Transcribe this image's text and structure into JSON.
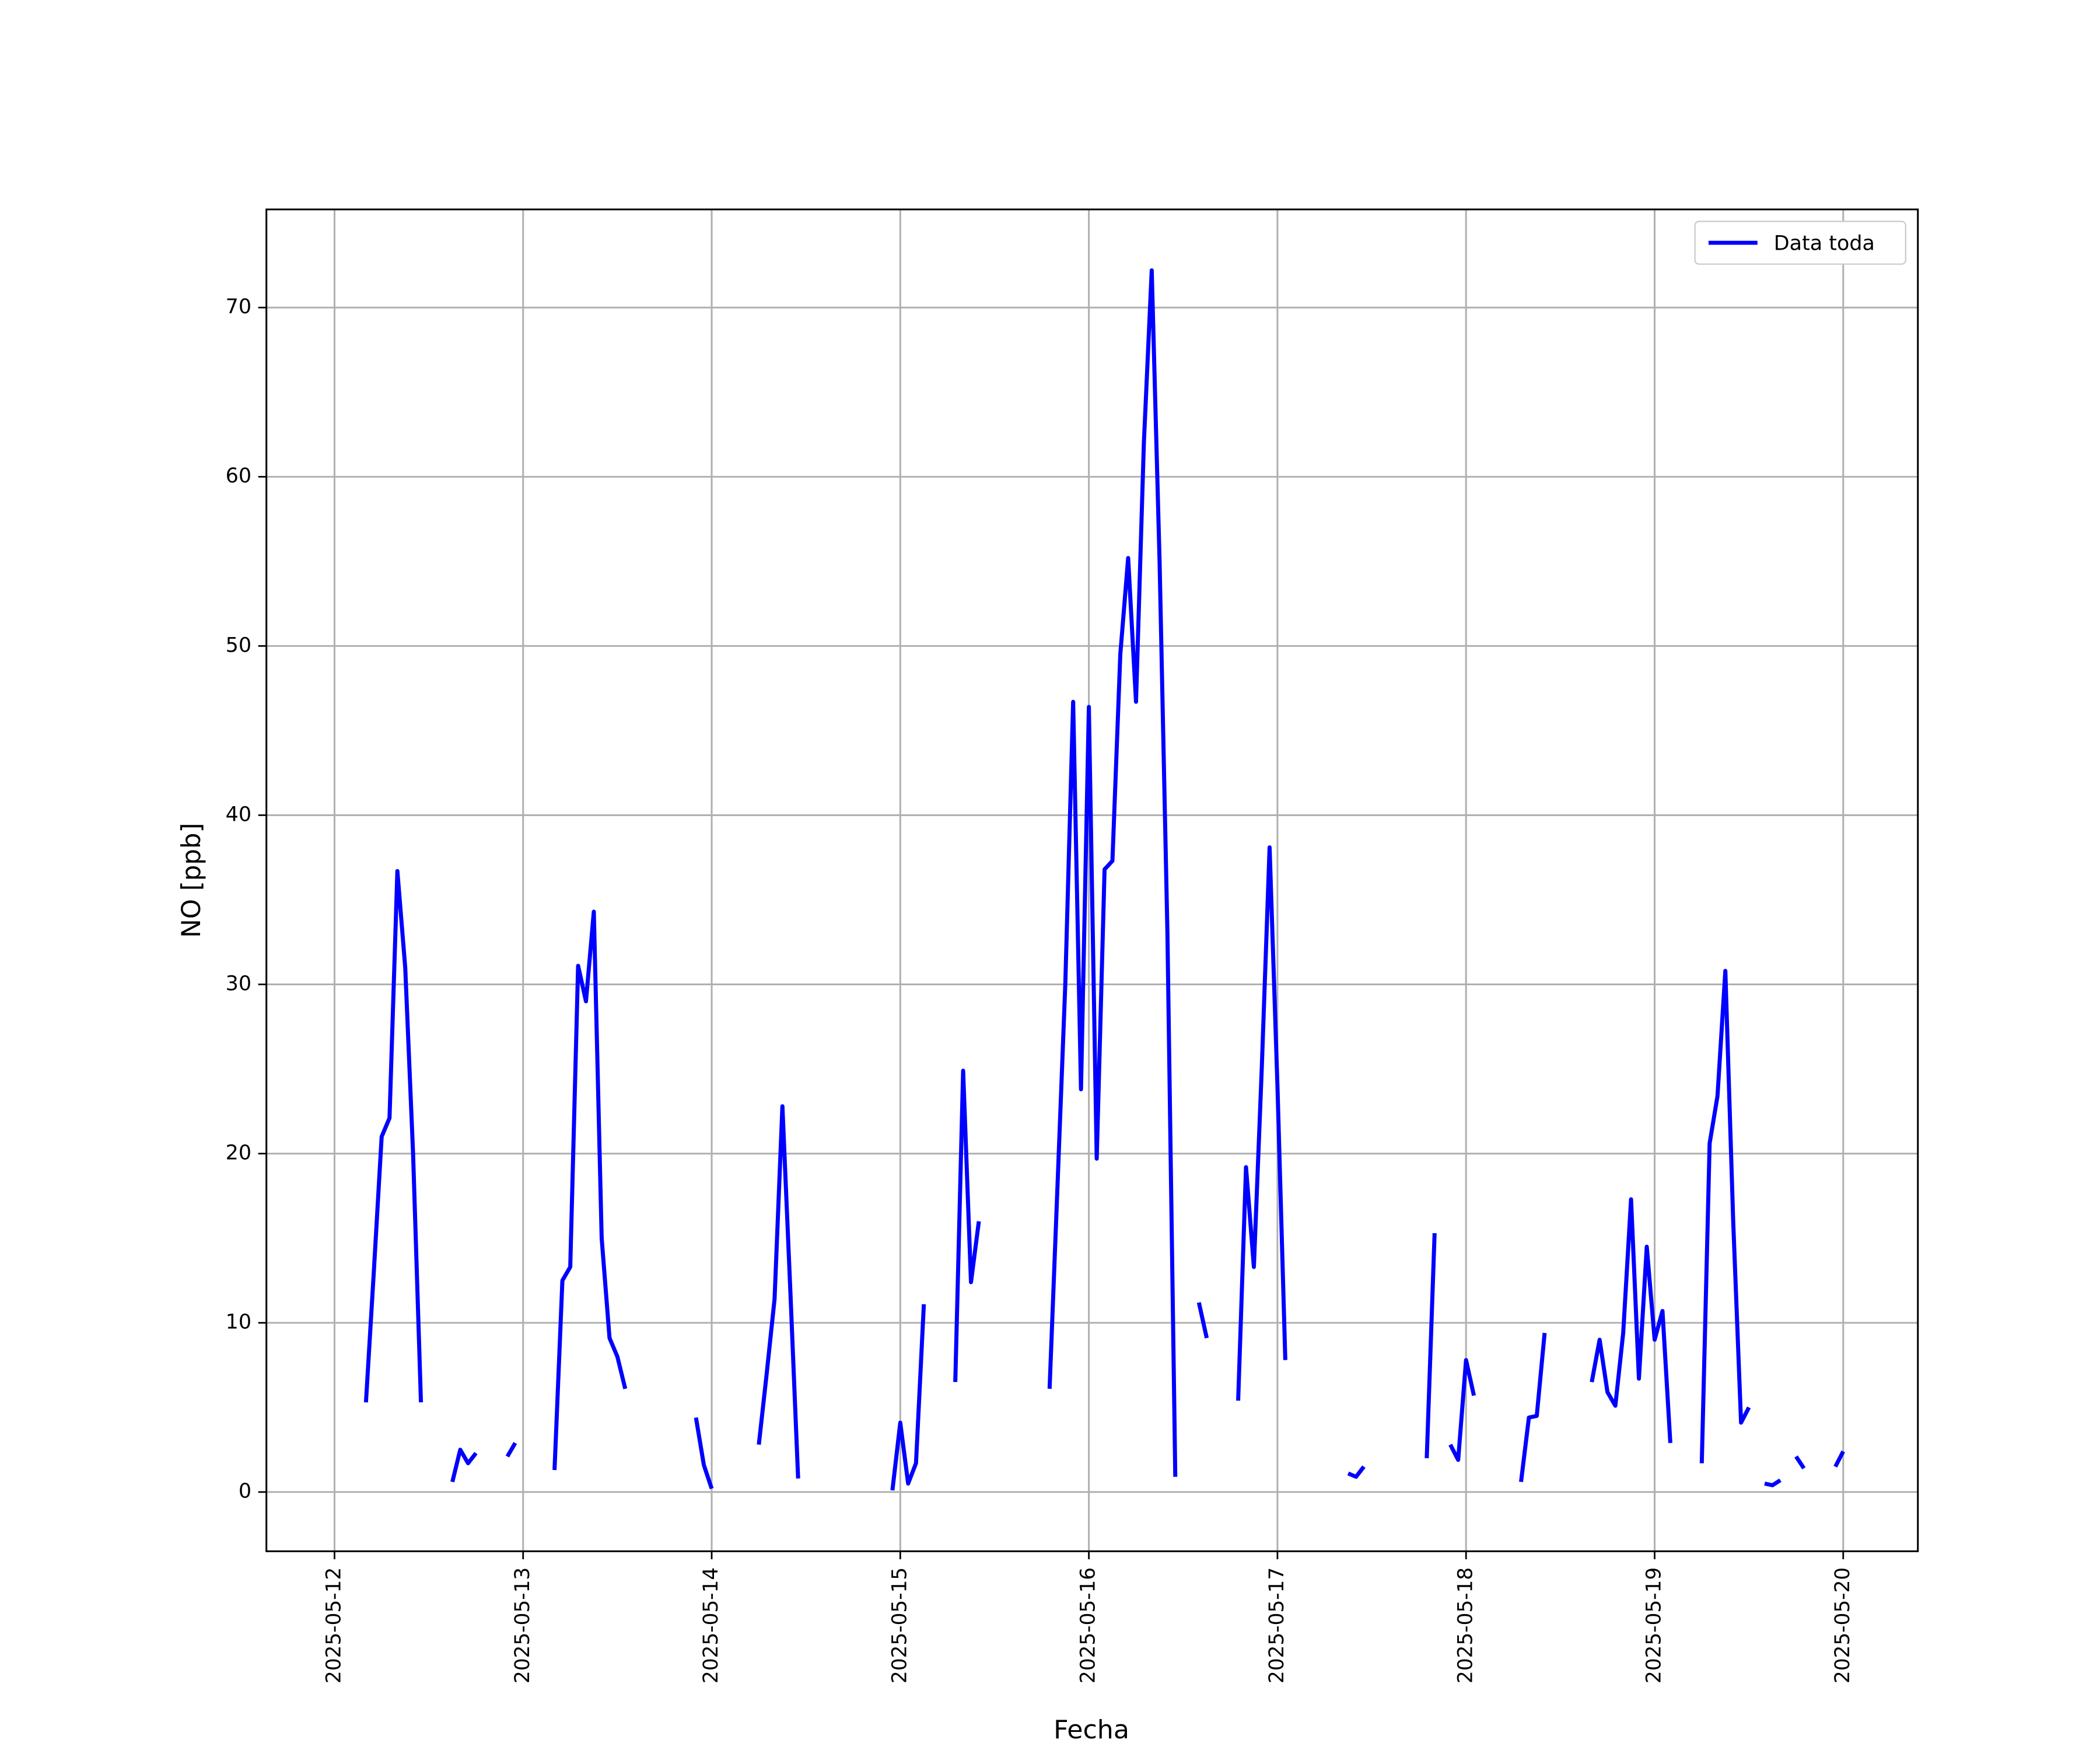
{
  "chart_data": {
    "type": "line",
    "xlabel": "Fecha",
    "ylabel": "NO [ppb]",
    "xlim": [
      "2025-05-11 15:20",
      "2025-05-20 09:30"
    ],
    "xticks": [
      "2025-05-12",
      "2025-05-13",
      "2025-05-14",
      "2025-05-15",
      "2025-05-16",
      "2025-05-17",
      "2025-05-18",
      "2025-05-19",
      "2025-05-20"
    ],
    "ylim": [
      -3.5,
      75.8
    ],
    "yticks": [
      0,
      10,
      20,
      30,
      40,
      50,
      60,
      70
    ],
    "grid": true,
    "legend": "upper right",
    "x": [
      "2025-05-12 04:00",
      "2025-05-12 05:00",
      "2025-05-12 06:00",
      "2025-05-12 07:00",
      "2025-05-12 08:00",
      "2025-05-12 09:00",
      "2025-05-12 10:00",
      "2025-05-12 11:00",
      "2025-05-12 12:00",
      "2025-05-12 15:00",
      "2025-05-12 16:00",
      "2025-05-12 17:00",
      "2025-05-12 18:00",
      "2025-05-12 19:00",
      "2025-05-12 22:00",
      "2025-05-12 23:00",
      "2025-05-13 00:00",
      "2025-05-13 04:00",
      "2025-05-13 05:00",
      "2025-05-13 06:00",
      "2025-05-13 07:00",
      "2025-05-13 08:00",
      "2025-05-13 09:00",
      "2025-05-13 10:00",
      "2025-05-13 11:00",
      "2025-05-13 12:00",
      "2025-05-13 13:00",
      "2025-05-13 14:00",
      "2025-05-13 22:00",
      "2025-05-13 23:00",
      "2025-05-14 00:00",
      "2025-05-14 01:00",
      "2025-05-14 06:00",
      "2025-05-14 07:00",
      "2025-05-14 08:00",
      "2025-05-14 09:00",
      "2025-05-14 10:00",
      "2025-05-14 11:00",
      "2025-05-14 12:00",
      "2025-05-14 23:00",
      "2025-05-15 00:00",
      "2025-05-15 01:00",
      "2025-05-15 02:00",
      "2025-05-15 03:00",
      "2025-05-15 04:00",
      "2025-05-15 07:00",
      "2025-05-15 08:00",
      "2025-05-15 09:00",
      "2025-05-15 10:00",
      "2025-05-15 11:00",
      "2025-05-15 19:00",
      "2025-05-15 20:00",
      "2025-05-15 21:00",
      "2025-05-15 22:00",
      "2025-05-15 23:00",
      "2025-05-16 00:00",
      "2025-05-16 01:00",
      "2025-05-16 02:00",
      "2025-05-16 03:00",
      "2025-05-16 04:00",
      "2025-05-16 05:00",
      "2025-05-16 06:00",
      "2025-05-16 07:00",
      "2025-05-16 08:00",
      "2025-05-16 09:00",
      "2025-05-16 10:00",
      "2025-05-16 11:00",
      "2025-05-16 12:00",
      "2025-05-16 14:00",
      "2025-05-16 15:00",
      "2025-05-16 16:00",
      "2025-05-16 19:00",
      "2025-05-16 20:00",
      "2025-05-16 21:00",
      "2025-05-16 22:00",
      "2025-05-16 23:00",
      "2025-05-17 00:00",
      "2025-05-17 01:00",
      "2025-05-17 02:00",
      "2025-05-17 09:00",
      "2025-05-17 10:00",
      "2025-05-17 11:00",
      "2025-05-17 12:00",
      "2025-05-17 19:00",
      "2025-05-17 20:00",
      "2025-05-17 21:00",
      "2025-05-17 22:00",
      "2025-05-17 23:00",
      "2025-05-18 00:00",
      "2025-05-18 01:00",
      "2025-05-18 02:00",
      "2025-05-18 07:00",
      "2025-05-18 08:00",
      "2025-05-18 09:00",
      "2025-05-18 10:00",
      "2025-05-18 11:00",
      "2025-05-18 16:00",
      "2025-05-18 17:00",
      "2025-05-18 18:00",
      "2025-05-18 19:00",
      "2025-05-18 20:00",
      "2025-05-18 21:00",
      "2025-05-18 22:00",
      "2025-05-18 23:00",
      "2025-05-19 00:00",
      "2025-05-19 01:00",
      "2025-05-19 02:00",
      "2025-05-19 03:00",
      "2025-05-19 06:00",
      "2025-05-19 07:00",
      "2025-05-19 08:00",
      "2025-05-19 09:00",
      "2025-05-19 10:00",
      "2025-05-19 11:00",
      "2025-05-19 12:00",
      "2025-05-19 13:00",
      "2025-05-19 14:00",
      "2025-05-19 15:00",
      "2025-05-19 16:00",
      "2025-05-19 17:00",
      "2025-05-19 18:00",
      "2025-05-19 19:00",
      "2025-05-19 20:00",
      "2025-05-19 23:00",
      "2025-05-20 00:00"
    ],
    "series": [
      {
        "name": "Data toda",
        "color": "#0000ff",
        "values": [
          5.3,
          13,
          21,
          22.1,
          36.7,
          31,
          20,
          5.3,
          null,
          0.6,
          2.5,
          1.7,
          2.3,
          null,
          2.1,
          2.9,
          null,
          1.3,
          12.5,
          13.3,
          31.1,
          29,
          34.3,
          15,
          9.1,
          8,
          6.1,
          null,
          4.4,
          1.6,
          0.2,
          null,
          2.8,
          7,
          11.4,
          22.8,
          12,
          0.8,
          null,
          0.1,
          4.1,
          0.5,
          1.7,
          11.1,
          null,
          6.5,
          24.9,
          12.4,
          16,
          null,
          6.1,
          18,
          30,
          46.7,
          23.8,
          46.4,
          19.7,
          36.8,
          37.3,
          49.5,
          55.2,
          46.7,
          62,
          72.2,
          55,
          33,
          0.9,
          null,
          11.2,
          9.1,
          null,
          5.4,
          19.2,
          13.3,
          25,
          38.1,
          24,
          7.8,
          null,
          1.1,
          0.9,
          1.5,
          null,
          2,
          15.3,
          null,
          2.8,
          1.9,
          7.8,
          5.7,
          null,
          0.6,
          4.4,
          4.5,
          9.4,
          null,
          6.5,
          9,
          5.9,
          5.1,
          9.4,
          17.3,
          6.7,
          14.5,
          9,
          10.7,
          2.9,
          null,
          1.7,
          20.6,
          23.4,
          30.8,
          16,
          4.1,
          5,
          null,
          0.5,
          0.4,
          0.7,
          null,
          2.1,
          1.4,
          null,
          1.5,
          2.4
        ]
      }
    ]
  }
}
